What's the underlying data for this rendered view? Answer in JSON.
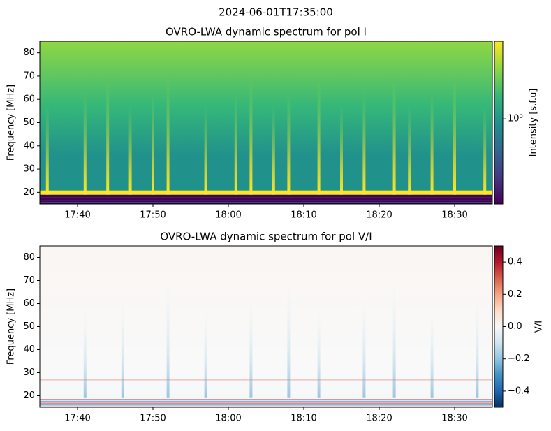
{
  "suptitle": "2024-06-01T17:35:00",
  "chart_data": [
    {
      "type": "spectrogram",
      "title": "OVRO-LWA dynamic spectrum for pol I",
      "ylabel": "Frequency [MHz]",
      "xlim": [
        "17:35",
        "18:35"
      ],
      "xticks": [
        "17:40",
        "17:50",
        "18:00",
        "18:10",
        "18:20",
        "18:30"
      ],
      "ylim": [
        15,
        85
      ],
      "yticks": [
        20,
        30,
        40,
        50,
        60,
        70,
        80
      ],
      "colorbar_label": "Intensity [s.f.u]",
      "clim": [
        0.3,
        3
      ],
      "log_colorbar": true,
      "cticks": [
        {
          "value": 1,
          "label": "10⁰"
        }
      ],
      "colormap": [
        "#440154",
        "#443983",
        "#31688e",
        "#21918c",
        "#35b779",
        "#90d743",
        "#fde725"
      ],
      "bursts": [
        "17:36",
        "17:41",
        "17:44",
        "17:47",
        "17:50",
        "17:52",
        "17:57",
        "18:01",
        "18:03",
        "18:06",
        "18:08",
        "18:12",
        "18:15",
        "18:18",
        "18:22",
        "18:24",
        "18:27",
        "18:30",
        "18:34"
      ]
    },
    {
      "type": "spectrogram",
      "title": "OVRO-LWA dynamic spectrum for pol V/I",
      "ylabel": "Frequency [MHz]",
      "xlim": [
        "17:35",
        "18:35"
      ],
      "xticks": [
        "17:40",
        "17:50",
        "18:00",
        "18:10",
        "18:20",
        "18:30"
      ],
      "ylim": [
        15,
        85
      ],
      "yticks": [
        20,
        30,
        40,
        50,
        60,
        70,
        80
      ],
      "colorbar_label": "V/I",
      "clim": [
        -0.5,
        0.5
      ],
      "log_colorbar": false,
      "cticks": [
        {
          "value": -0.4,
          "label": "−0.4"
        },
        {
          "value": -0.2,
          "label": "−0.2"
        },
        {
          "value": 0,
          "label": "0.0"
        },
        0.2,
        0.4
      ],
      "colormap": [
        "#053061",
        "#2166ac",
        "#4393c3",
        "#92c5de",
        "#d1e5f0",
        "#f7f7f7",
        "#fddbc7",
        "#f4a582",
        "#d6604d",
        "#b2182b",
        "#67001f"
      ],
      "bursts": [
        "17:41",
        "17:46",
        "17:52",
        "17:57",
        "18:03",
        "18:08",
        "18:12",
        "18:18",
        "18:22",
        "18:27",
        "18:33"
      ]
    }
  ]
}
